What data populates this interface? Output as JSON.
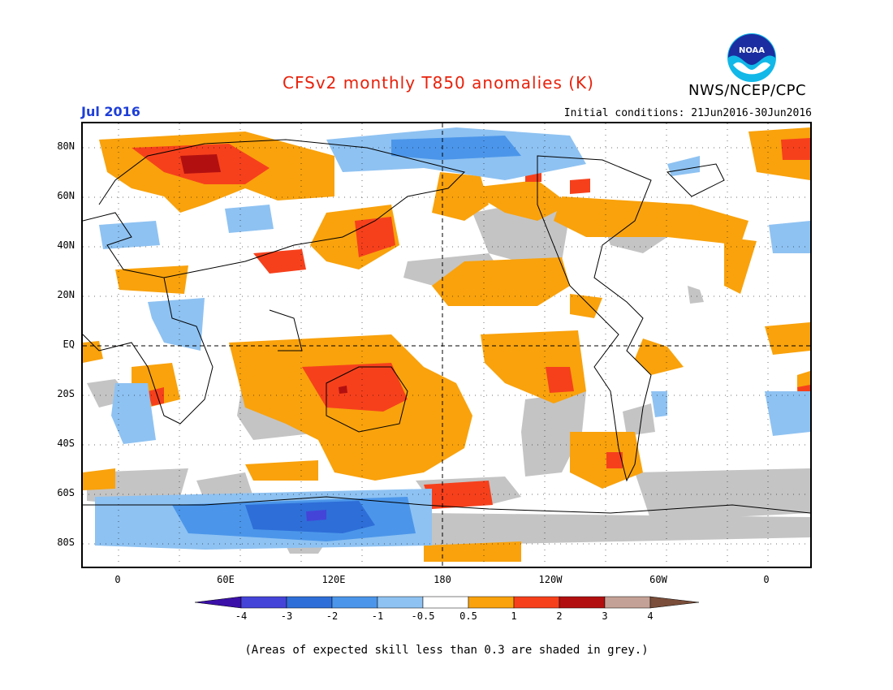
{
  "title": "CFSv2 monthly T850 anomalies (K)",
  "agency": "NWS/NCEP/CPC",
  "logo_text": "NOAA",
  "target_month": "Jul 2016",
  "initial_conditions": "Initial conditions: 21Jun2016-30Jun2016",
  "lat_labels": [
    "80N",
    "60N",
    "40N",
    "20N",
    "EQ",
    "20S",
    "40S",
    "60S",
    "80S"
  ],
  "lon_labels": [
    "0",
    "60E",
    "120E",
    "180",
    "120W",
    "60W",
    "0"
  ],
  "colorbar": {
    "labels": [
      "-4",
      "-3",
      "-2",
      "-1",
      "-0.5",
      "0.5",
      "1",
      "2",
      "3",
      "4"
    ],
    "colors": [
      "#3a10a8",
      "#4444d8",
      "#2e6ed8",
      "#4b96ea",
      "#8ec2f2",
      "#ffffff",
      "#f9a20c",
      "#f6401c",
      "#b21010",
      "#c4a196",
      "#7a4e3a"
    ]
  },
  "shading_colors": {
    "grey": "#c4c4c4",
    "pos1": "#f9a20c",
    "pos2": "#f6401c",
    "pos3": "#b21010",
    "neg1": "#8ec2f2",
    "neg2": "#4b96ea",
    "neg3": "#2e6ed8",
    "neg4": "#4444d8"
  },
  "footnote": "(Areas of expected skill less than 0.3 are shaded in grey.)"
}
